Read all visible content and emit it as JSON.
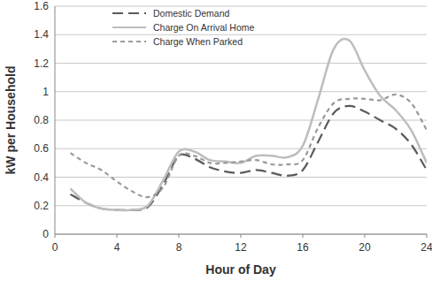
{
  "chart_data": {
    "type": "line",
    "x_label": "Hour of Day",
    "y_label": "kW per Household",
    "x": [
      1,
      2,
      3,
      4,
      5,
      6,
      7,
      8,
      9,
      10,
      11,
      12,
      13,
      14,
      15,
      16,
      17,
      18,
      19,
      20,
      21,
      22,
      23,
      24
    ],
    "series": [
      {
        "name": "Domestic Demand",
        "color": "#5a5a5a",
        "line_style": "long-dash",
        "values": [
          0.28,
          0.22,
          0.18,
          0.17,
          0.17,
          0.19,
          0.35,
          0.55,
          0.53,
          0.47,
          0.44,
          0.43,
          0.45,
          0.43,
          0.41,
          0.45,
          0.65,
          0.85,
          0.9,
          0.86,
          0.8,
          0.74,
          0.63,
          0.45
        ]
      },
      {
        "name": "Charge On Arrival Home",
        "color": "#bdbdbd",
        "line_style": "solid",
        "values": [
          0.32,
          0.22,
          0.18,
          0.17,
          0.17,
          0.2,
          0.38,
          0.58,
          0.58,
          0.52,
          0.51,
          0.5,
          0.55,
          0.55,
          0.54,
          0.62,
          0.95,
          1.3,
          1.36,
          1.15,
          0.97,
          0.87,
          0.73,
          0.5
        ]
      },
      {
        "name": "Charge When Parked",
        "color": "#9a9a9a",
        "line_style": "short-dash",
        "values": [
          0.57,
          0.5,
          0.45,
          0.37,
          0.3,
          0.26,
          0.33,
          0.55,
          0.55,
          0.5,
          0.5,
          0.51,
          0.52,
          0.49,
          0.49,
          0.52,
          0.75,
          0.92,
          0.95,
          0.95,
          0.94,
          0.98,
          0.92,
          0.73
        ]
      }
    ],
    "xlim": [
      0,
      24
    ],
    "xticks": [
      0,
      4,
      8,
      12,
      16,
      20,
      24
    ],
    "ylim": [
      0,
      1.6
    ],
    "yticks": [
      0,
      0.2,
      0.4,
      0.6,
      0.8,
      1,
      1.2,
      1.4,
      1.6
    ],
    "grid": true,
    "legend": "upper-left"
  }
}
